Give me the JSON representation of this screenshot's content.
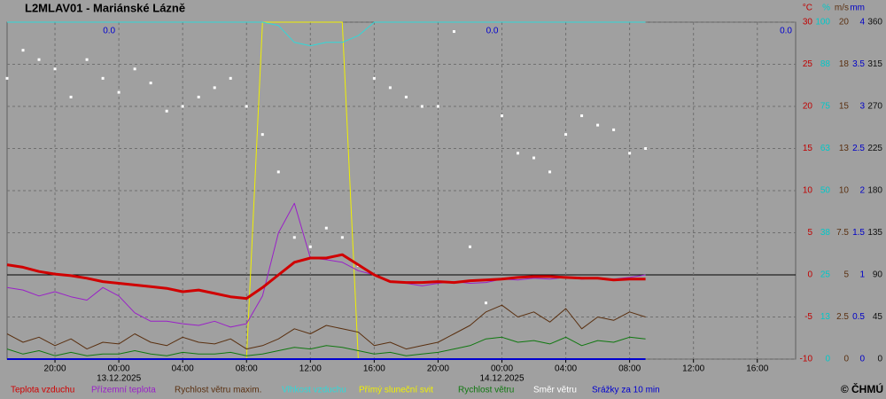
{
  "chart_data": {
    "type": "line",
    "title": "L2MLAV01 - Mariánské Lázně",
    "copyright": "© ČHMÚ",
    "x": [
      17,
      18,
      19,
      20,
      21,
      22,
      23,
      24,
      25,
      26,
      27,
      28,
      29,
      30,
      31,
      32,
      33,
      34,
      35,
      36,
      37,
      38,
      39,
      40,
      41,
      42,
      43,
      44,
      45,
      46,
      47,
      48,
      49,
      50,
      51,
      52,
      53,
      54,
      55,
      56,
      57
    ],
    "xlim": [
      17,
      66.4
    ],
    "xticks": [
      {
        "value": 20,
        "label": "20:00"
      },
      {
        "value": 24,
        "label": "00:00"
      },
      {
        "value": 28,
        "label": "04:00"
      },
      {
        "value": 32,
        "label": "08:00"
      },
      {
        "value": 36,
        "label": "12:00"
      },
      {
        "value": 40,
        "label": "16:00"
      },
      {
        "value": 44,
        "label": "20:00"
      },
      {
        "value": 48,
        "label": "00:00"
      },
      {
        "value": 52,
        "label": "04:00"
      },
      {
        "value": 56,
        "label": "08:00"
      },
      {
        "value": 60,
        "label": "12:00"
      },
      {
        "value": 64,
        "label": "16:00"
      }
    ],
    "date_labels": [
      {
        "value": 24,
        "label": "13.12.2025"
      },
      {
        "value": 48,
        "label": "14.12.2025"
      }
    ],
    "ylabel": "°C",
    "ylim": [
      -10,
      30
    ],
    "yticks": [
      -10,
      -5,
      0,
      5,
      10,
      15,
      20,
      25,
      30
    ],
    "ycolor": "#c00000",
    "y2label": "%",
    "y2lim": [
      0,
      100
    ],
    "y2ticks": [
      0,
      {
        "value": 12.5,
        "label": "13"
      },
      25,
      {
        "value": 37.5,
        "label": "38"
      },
      50,
      {
        "value": 62.5,
        "label": "63"
      },
      75,
      {
        "value": 87.5,
        "label": "88"
      },
      100
    ],
    "y2color": "#00c8c8",
    "y3label": "m/s",
    "y3lim": [
      0,
      20
    ],
    "y3ticks": [
      0,
      2.5,
      5,
      7.5,
      10,
      {
        "value": 12.5,
        "label": "13"
      },
      15,
      {
        "value": 17.5,
        "label": "18"
      },
      20
    ],
    "y3color": "#5a3010",
    "y4label": "mm",
    "y4lim": [
      0,
      4
    ],
    "y4ticks": [
      0,
      0.5,
      1,
      1.5,
      2,
      2.5,
      3,
      3.5,
      4
    ],
    "y4color": "#0000c8",
    "y5lim": [
      0,
      360
    ],
    "y5ticks": [
      0,
      45,
      90,
      135,
      180,
      225,
      270,
      315,
      360
    ],
    "y5color": "#101010",
    "grid": true,
    "series": [
      {
        "name": "Teplota vzduchu",
        "color": "#d00000",
        "axis": "y",
        "line_width": 3,
        "values": [
          1.2,
          0.9,
          0.4,
          0.1,
          -0.1,
          -0.4,
          -0.8,
          -1.0,
          -1.2,
          -1.4,
          -1.6,
          -2.0,
          -1.8,
          -2.2,
          -2.6,
          -2.8,
          -1.5,
          0.0,
          1.5,
          2.0,
          2.0,
          2.4,
          1.2,
          0.0,
          -0.8,
          -0.9,
          -0.9,
          -0.8,
          -0.9,
          -0.7,
          -0.6,
          -0.5,
          -0.3,
          -0.2,
          -0.2,
          -0.3,
          -0.4,
          -0.4,
          -0.6,
          -0.5,
          -0.5
        ]
      },
      {
        "name": "Přízemní teplota",
        "color": "#9a20c8",
        "axis": "y",
        "line_width": 1,
        "values": [
          -1.5,
          -1.8,
          -2.5,
          -2.0,
          -2.6,
          -3.0,
          -1.5,
          -2.5,
          -4.5,
          -5.5,
          -5.5,
          -5.8,
          -6.0,
          -5.5,
          -6.2,
          -5.8,
          -2.5,
          5.0,
          8.5,
          2.0,
          1.8,
          1.5,
          0.5,
          0.0,
          -0.8,
          -1.0,
          -1.3,
          -1.0,
          -0.8,
          -1.0,
          -0.9,
          -0.5,
          -0.6,
          -0.4,
          -0.5,
          -0.3,
          -0.5,
          -0.4,
          -0.5,
          -0.3,
          0.0
        ]
      },
      {
        "name": "Rychlost větru maxim.",
        "color": "#5a3010",
        "axis": "y3",
        "line_width": 1,
        "values": [
          1.5,
          1.0,
          1.3,
          0.8,
          1.2,
          0.6,
          1.0,
          0.9,
          1.5,
          1.0,
          0.8,
          1.3,
          1.0,
          0.9,
          1.2,
          0.6,
          0.8,
          1.2,
          1.8,
          1.5,
          2.0,
          1.8,
          1.6,
          0.8,
          1.0,
          0.6,
          0.8,
          1.0,
          1.5,
          2.0,
          2.8,
          3.2,
          2.5,
          2.8,
          2.2,
          3.0,
          1.8,
          2.5,
          2.3,
          2.8,
          2.5
        ]
      },
      {
        "name": "Vlhkost vzduchu",
        "color": "#30d8d8",
        "axis": "y2",
        "line_width": 1,
        "values": [
          100,
          100,
          100,
          100,
          100,
          100,
          100,
          100,
          100,
          100,
          100,
          100,
          100,
          100,
          100,
          100,
          100,
          99,
          94,
          93,
          94,
          94,
          96,
          100,
          100,
          100,
          100,
          100,
          100,
          100,
          100,
          100,
          100,
          100,
          100,
          100,
          100,
          100,
          100,
          100,
          100
        ]
      },
      {
        "name": "Přímý sluneční svit",
        "color": "#f0f000",
        "axis": "y2",
        "line_width": 1,
        "values": [
          0,
          0,
          0,
          0,
          0,
          0,
          0,
          0,
          0,
          0,
          0,
          0,
          0,
          0,
          0,
          0,
          100,
          100,
          100,
          100,
          100,
          100,
          0,
          0,
          0,
          0,
          0,
          0,
          0,
          0,
          0,
          0,
          0,
          0,
          0,
          0,
          0,
          0,
          0,
          0,
          0
        ]
      },
      {
        "name": "Rychlost větru",
        "color": "#107810",
        "axis": "y3",
        "line_width": 1,
        "values": [
          0.6,
          0.3,
          0.5,
          0.2,
          0.4,
          0.2,
          0.3,
          0.3,
          0.5,
          0.3,
          0.2,
          0.4,
          0.3,
          0.3,
          0.4,
          0.2,
          0.3,
          0.5,
          0.7,
          0.6,
          0.8,
          0.7,
          0.5,
          0.3,
          0.4,
          0.2,
          0.3,
          0.4,
          0.6,
          0.8,
          1.2,
          1.3,
          1.0,
          1.1,
          0.9,
          1.3,
          0.8,
          1.1,
          1.0,
          1.3,
          1.2
        ]
      },
      {
        "name": "Směr větru",
        "color": "#ffffff",
        "axis": "y5",
        "mark": "dots",
        "values": [
          300,
          330,
          320,
          310,
          280,
          320,
          300,
          285,
          310,
          295,
          265,
          270,
          280,
          290,
          300,
          270,
          240,
          200,
          130,
          120,
          140,
          130,
          100,
          300,
          290,
          280,
          270,
          270,
          350,
          120,
          60,
          260,
          220,
          215,
          200,
          240,
          260,
          250,
          245,
          220,
          225
        ]
      },
      {
        "name": "Srážky za 10 min",
        "color": "#0000d0",
        "axis": "y4",
        "line_width": 2,
        "values": [
          0,
          0,
          0,
          0,
          0,
          0,
          0,
          0,
          0,
          0,
          0,
          0,
          0,
          0,
          0,
          0,
          0,
          0,
          0,
          0,
          0,
          0,
          0,
          0,
          0,
          0,
          0,
          0,
          0,
          0,
          0,
          0,
          0,
          0,
          0,
          0,
          0,
          0,
          0,
          0,
          0
        ]
      }
    ],
    "precip_totals": {
      "x": [
        24,
        48,
        66.4
      ],
      "values": [
        0,
        0,
        0
      ],
      "value_labels": [
        "0.0",
        "0.0",
        "0.0"
      ],
      "color": "#0000d0"
    }
  }
}
